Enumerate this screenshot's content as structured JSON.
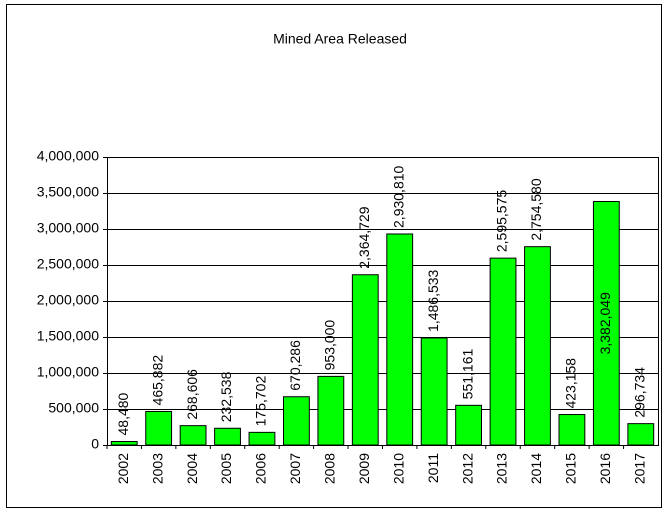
{
  "chart_data": {
    "type": "bar",
    "title": "Mined Area Released",
    "categories": [
      "2002",
      "2003",
      "2004",
      "2005",
      "2006",
      "2007",
      "2008",
      "2009",
      "2010",
      "2011",
      "2012",
      "2013",
      "2014",
      "2015",
      "2016",
      "2017"
    ],
    "values": [
      48480,
      465882,
      268606,
      232538,
      175702,
      670286,
      953000,
      2364729,
      2930810,
      1486533,
      551161,
      2595575,
      2754580,
      423158,
      3382049,
      296734
    ],
    "value_labels": [
      "48,480",
      "465,882",
      "268,606",
      "232,538",
      "175,702",
      "670,286",
      "953,000",
      "2,364,729",
      "2,930,810",
      "1,486,533",
      "551,161",
      "2,595,575",
      "2,754,580",
      "423,158",
      "3,382,049",
      "296,734"
    ],
    "color": "#00ff00",
    "ylim": [
      0,
      4000000
    ],
    "yticks": [
      0,
      {
        "value": 500000,
        "label": "500,000"
      },
      {
        "value": 1000000,
        "label": "1,000,000"
      },
      {
        "value": 1500000,
        "label": "1,500,000"
      },
      {
        "value": 2000000,
        "label": "2,000,000"
      },
      {
        "value": 2500000,
        "label": "2,500,000"
      },
      {
        "value": 3000000,
        "label": "3,000,000"
      },
      {
        "value": 3500000,
        "label": "3,500,000"
      },
      {
        "value": 4000000,
        "label": "4,000,000"
      }
    ],
    "grid": true
  }
}
